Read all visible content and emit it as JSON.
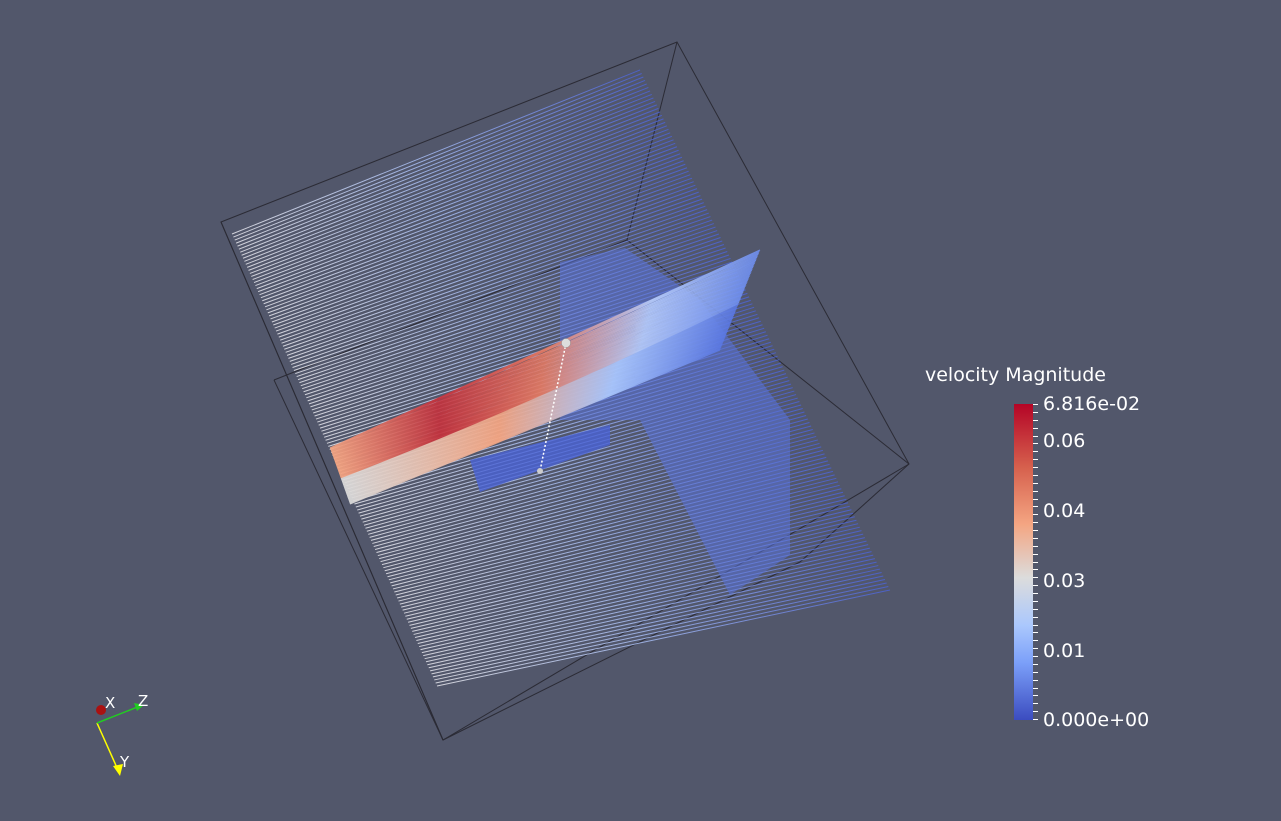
{
  "colorbar": {
    "title": "velocity Magnitude",
    "max_label": "6.816e-02",
    "min_label": "0.000e+00",
    "tick_labels": [
      "0.06",
      "0.04",
      "0.03",
      "0.01"
    ],
    "range": [
      0,
      0.06816
    ],
    "colormap": "cool-to-warm",
    "colors": [
      "#3b4cc0",
      "#7b9ff9",
      "#dcdcdc",
      "#f4a582",
      "#b40426"
    ]
  },
  "orientation_axes": {
    "x_label": "X",
    "y_label": "Y",
    "z_label": "Z",
    "x_color": "#cc1111",
    "y_color": "#ffff00",
    "z_color": "#22cc22"
  },
  "background_color": "#52576b"
}
